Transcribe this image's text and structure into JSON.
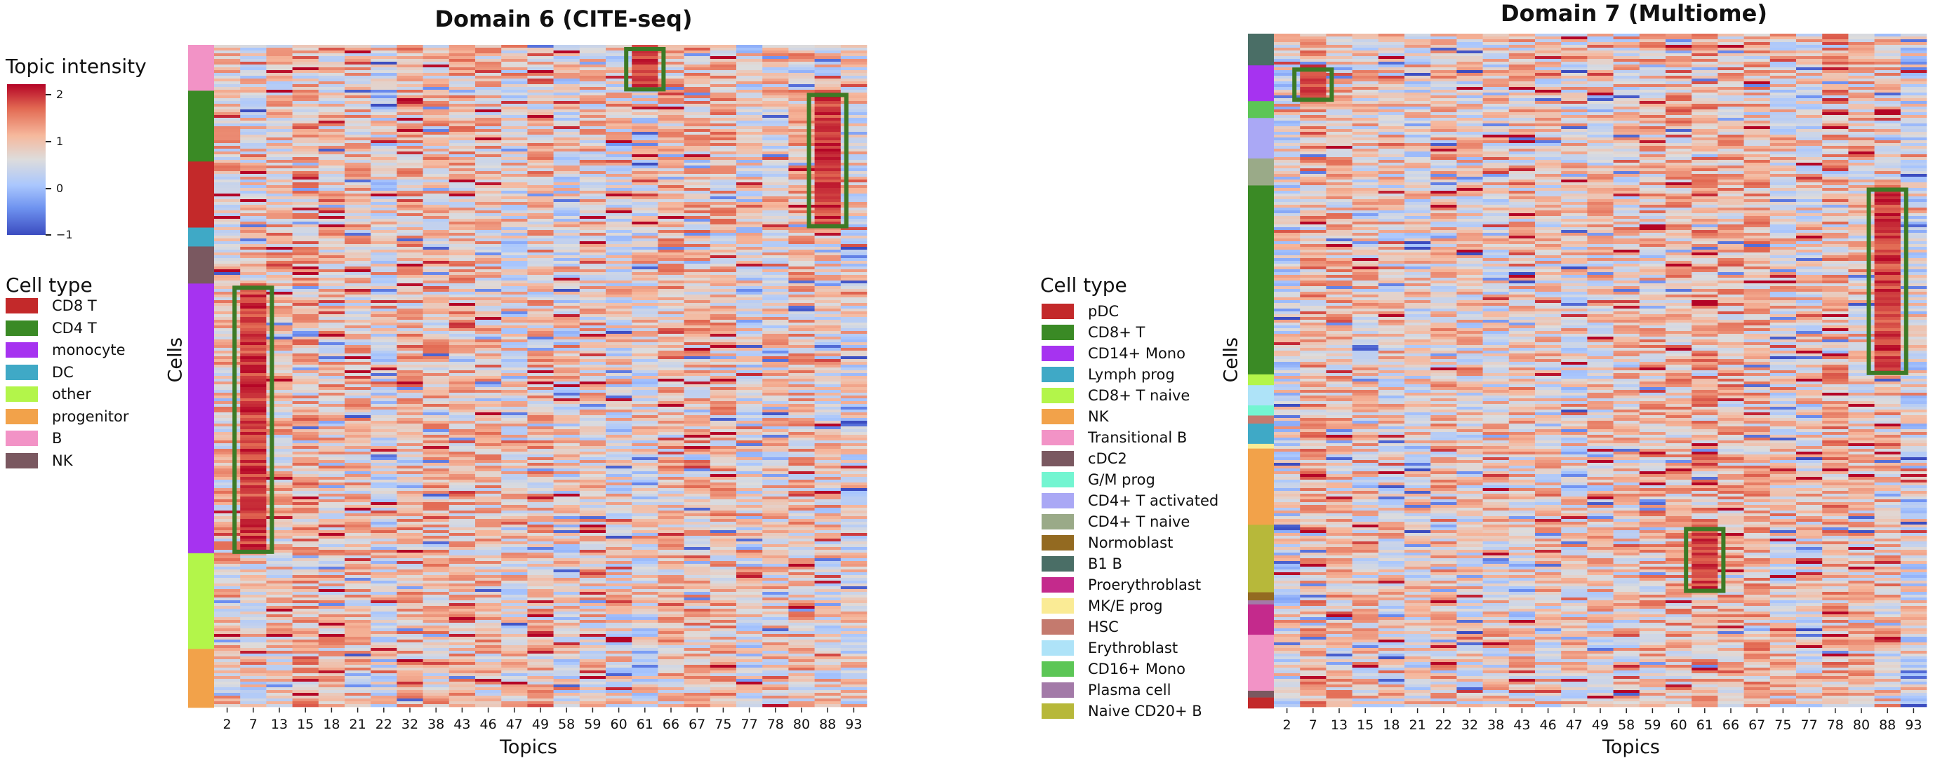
{
  "colorbar": {
    "title": "Topic intensity",
    "ticks": [
      {
        "value": 2,
        "label": "2"
      },
      {
        "value": 1,
        "label": "1"
      },
      {
        "value": 0,
        "label": "0"
      },
      {
        "value": -1,
        "label": "−1"
      }
    ],
    "range": [
      -1,
      2.3
    ],
    "colormap": "coolwarm"
  },
  "chart_data": [
    {
      "type": "heatmap",
      "title": "Domain 6 (CITE-seq)",
      "xlabel": "Topics",
      "ylabel": "Cells",
      "x_tick_labels": [
        "2",
        "7",
        "13",
        "15",
        "18",
        "21",
        "22",
        "32",
        "38",
        "43",
        "46",
        "47",
        "49",
        "58",
        "59",
        "60",
        "61",
        "66",
        "67",
        "75",
        "77",
        "78",
        "80",
        "88",
        "93"
      ],
      "legend_title": "Cell type",
      "cell_types": [
        {
          "name": "CD8 T",
          "color": "#c3292a"
        },
        {
          "name": "CD4 T",
          "color": "#3a8a25"
        },
        {
          "name": "monocyte",
          "color": "#a633f0"
        },
        {
          "name": "DC",
          "color": "#3fa9c6"
        },
        {
          "name": "other",
          "color": "#b3f54a"
        },
        {
          "name": "progenitor",
          "color": "#f2a24a"
        },
        {
          "name": "B",
          "color": "#f293c6"
        },
        {
          "name": "NK",
          "color": "#7a5860"
        }
      ],
      "row_annotation_order": [
        "B",
        "CD4 T",
        "CD8 T",
        "DC",
        "NK",
        "monocyte",
        "other",
        "progenitor"
      ],
      "row_annotation_fractions": [
        0.068,
        0.105,
        0.098,
        0.028,
        0.055,
        0.4,
        0.142,
        0.087
      ],
      "value_range": [
        -1,
        2.3
      ],
      "highlighted_blocks": [
        {
          "topic": "7",
          "cell_type": "monocyte"
        },
        {
          "topic": "61",
          "cell_type": "B"
        },
        {
          "topic": "88",
          "cell_type": "CD4 T / CD8 T"
        }
      ]
    },
    {
      "type": "heatmap",
      "title": "Domain 7 (Multiome)",
      "xlabel": "Topics",
      "ylabel": "Cells",
      "x_tick_labels": [
        "2",
        "7",
        "13",
        "15",
        "18",
        "21",
        "22",
        "32",
        "38",
        "43",
        "46",
        "47",
        "49",
        "58",
        "59",
        "60",
        "61",
        "66",
        "67",
        "75",
        "77",
        "78",
        "80",
        "88",
        "93"
      ],
      "legend_title": "Cell type",
      "cell_types": [
        {
          "name": "pDC",
          "color": "#c3292a"
        },
        {
          "name": "CD8+ T",
          "color": "#3a8a25"
        },
        {
          "name": "CD14+ Mono",
          "color": "#a633f0"
        },
        {
          "name": "Lymph prog",
          "color": "#3fa9c6"
        },
        {
          "name": "CD8+ T naive",
          "color": "#b3f54a"
        },
        {
          "name": "NK",
          "color": "#f2a24a"
        },
        {
          "name": "Transitional B",
          "color": "#f293c6"
        },
        {
          "name": "cDC2",
          "color": "#7a5860"
        },
        {
          "name": "G/M prog",
          "color": "#73f5d1"
        },
        {
          "name": "CD4+ T activated",
          "color": "#aaa8f5"
        },
        {
          "name": "CD4+ T naive",
          "color": "#9aaa88"
        },
        {
          "name": "Normoblast",
          "color": "#936a21"
        },
        {
          "name": "B1 B",
          "color": "#4a6e66"
        },
        {
          "name": "Proerythroblast",
          "color": "#c42a8c"
        },
        {
          "name": "MK/E prog",
          "color": "#faeb95"
        },
        {
          "name": "HSC",
          "color": "#c47a6e"
        },
        {
          "name": "Erythroblast",
          "color": "#aee3f8"
        },
        {
          "name": "CD16+ Mono",
          "color": "#5cc656"
        },
        {
          "name": "Plasma cell",
          "color": "#a37aa8"
        },
        {
          "name": "Naive CD20+ B",
          "color": "#b7b83a"
        }
      ],
      "row_annotation_order": [
        "B1 B",
        "CD14+ Mono",
        "CD16+ Mono",
        "CD4+ T activated",
        "CD4+ T naive",
        "CD8+ T",
        "CD8+ T naive",
        "Erythroblast",
        "G/M prog",
        "HSC",
        "Lymph prog",
        "MK/E prog",
        "NK",
        "Naive CD20+ B",
        "Normoblast",
        "Plasma cell",
        "Proerythroblast",
        "Transitional B",
        "cDC2",
        "pDC"
      ],
      "row_annotation_fractions": [
        0.047,
        0.053,
        0.025,
        0.06,
        0.04,
        0.28,
        0.016,
        0.03,
        0.015,
        0.012,
        0.03,
        0.007,
        0.113,
        0.1,
        0.012,
        0.006,
        0.045,
        0.083,
        0.01,
        0.016
      ],
      "value_range": [
        -1,
        2.3
      ],
      "highlighted_blocks": [
        {
          "topic": "7",
          "cell_type": "CD14+ Mono"
        },
        {
          "topic": "61",
          "cell_type": "Naive CD20+ B"
        },
        {
          "topic": "88",
          "cell_type": "CD8+ T"
        }
      ]
    }
  ]
}
